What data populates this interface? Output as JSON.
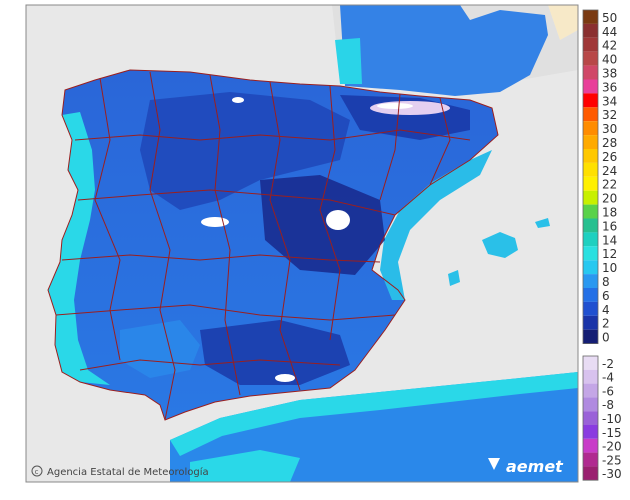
{
  "map": {
    "colors": {
      "sea": "#e8e8e8",
      "land_france": "#e0e0e0",
      "africa": "#eeeeee",
      "border": "#9a1f1f",
      "snow": "#ffffff"
    }
  },
  "legend": {
    "positive": [
      {
        "label": "50",
        "color": "#7a3a12"
      },
      {
        "label": "44",
        "color": "#8a3030"
      },
      {
        "label": "42",
        "color": "#a03838"
      },
      {
        "label": "40",
        "color": "#b84848"
      },
      {
        "label": "38",
        "color": "#d04868"
      },
      {
        "label": "36",
        "color": "#e8409a"
      },
      {
        "label": "34",
        "color": "#ff0000"
      },
      {
        "label": "32",
        "color": "#ff5a00"
      },
      {
        "label": "30",
        "color": "#ff8c00"
      },
      {
        "label": "28",
        "color": "#ffaa00"
      },
      {
        "label": "26",
        "color": "#ffc800"
      },
      {
        "label": "24",
        "color": "#ffe000"
      },
      {
        "label": "22",
        "color": "#fff000"
      },
      {
        "label": "20",
        "color": "#c8f000"
      },
      {
        "label": "18",
        "color": "#5ad24a"
      },
      {
        "label": "16",
        "color": "#28c090"
      },
      {
        "label": "14",
        "color": "#1ed0c0"
      },
      {
        "label": "12",
        "color": "#2ae0e0"
      },
      {
        "label": "10",
        "color": "#28c8f0"
      },
      {
        "label": "8",
        "color": "#2a98f0"
      },
      {
        "label": "6",
        "color": "#2470e6"
      },
      {
        "label": "4",
        "color": "#2050d0"
      },
      {
        "label": "2",
        "color": "#1a34a8"
      },
      {
        "label": "0",
        "color": "#141e74"
      }
    ],
    "negative": [
      {
        "label": "-2",
        "color": "#e8dcf4"
      },
      {
        "label": "-4",
        "color": "#d8c2ee"
      },
      {
        "label": "-6",
        "color": "#c4a6e6"
      },
      {
        "label": "-8",
        "color": "#b08ae0"
      },
      {
        "label": "-10",
        "color": "#9a62d8"
      },
      {
        "label": "-15",
        "color": "#8a3ce0"
      },
      {
        "label": "-20",
        "color": "#c83cc8"
      },
      {
        "label": "-25",
        "color": "#b02a90"
      },
      {
        "label": "-30",
        "color": "#9a2070"
      }
    ]
  },
  "credit": {
    "icon": "copyright-icon",
    "text": "Agencia Estatal de Meteorología"
  },
  "brand": {
    "text": "aemet"
  }
}
